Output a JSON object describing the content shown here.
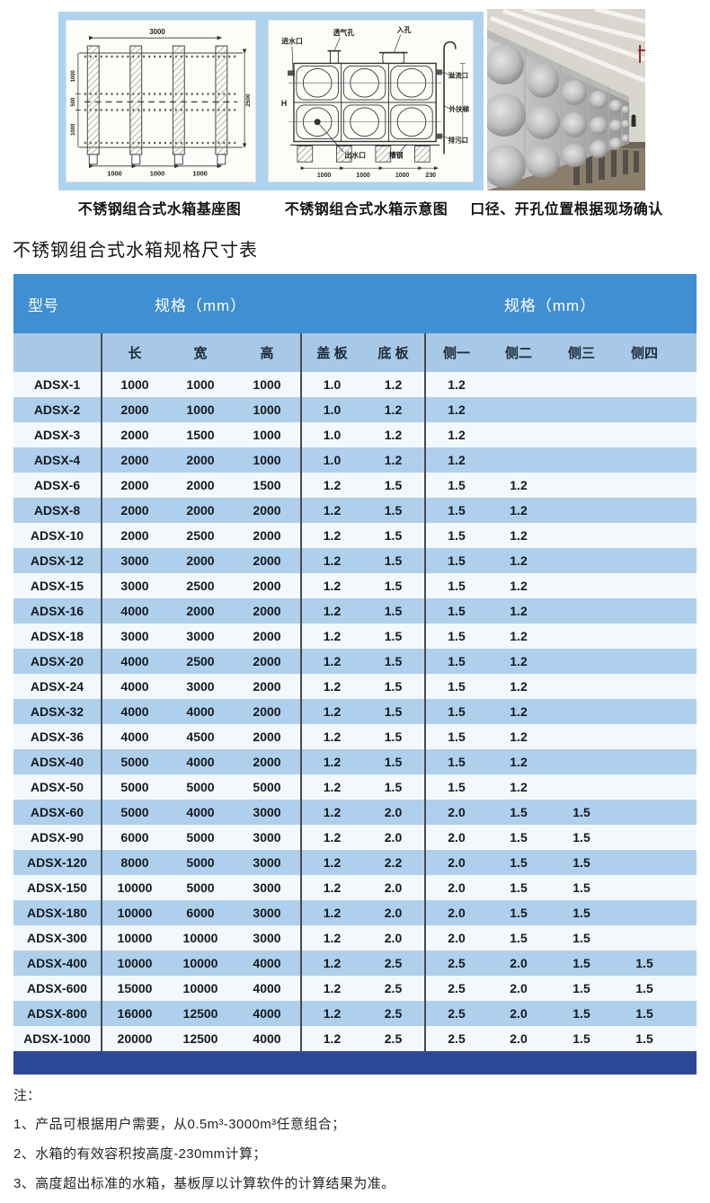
{
  "figures": {
    "captions": [
      "不锈钢组合式水箱基座图",
      "不锈钢组合式水箱示意图",
      "口径、开孔位置根据现场确认"
    ],
    "diagram1": {
      "dim_top": "3000",
      "dims_left": [
        "1000",
        "500",
        "1000"
      ],
      "dim_right": "2500",
      "dims_bottom": [
        "1000",
        "1000",
        "1000"
      ]
    },
    "diagram2": {
      "labels": {
        "inlet": "进水口",
        "vent": "透气孔",
        "manhole": "入孔",
        "overflow": "溢流口",
        "ladder": "外扶梯",
        "drain": "排污口",
        "outlet": "出水口",
        "channel": "槽钢",
        "height": "H"
      },
      "dims_bottom": [
        "1000",
        "1000",
        "1000",
        "230"
      ]
    }
  },
  "title": "不锈钢组合式水箱规格尺寸表",
  "table": {
    "group_headers": {
      "model": "型号",
      "spec_lwh": "规格（mm）",
      "spec_side": "规格（mm）"
    },
    "columns": [
      "长",
      "宽",
      "高",
      "盖 板",
      "底 板",
      "侧一",
      "侧二",
      "侧三",
      "侧四"
    ],
    "rows": [
      {
        "model": "ADSX-1",
        "values": [
          "1000",
          "1000",
          "1000",
          "1.0",
          "1.2",
          "1.2",
          "",
          "",
          ""
        ]
      },
      {
        "model": "ADSX-2",
        "values": [
          "2000",
          "1000",
          "1000",
          "1.0",
          "1.2",
          "1.2",
          "",
          "",
          ""
        ]
      },
      {
        "model": "ADSX-3",
        "values": [
          "2000",
          "1500",
          "1000",
          "1.0",
          "1.2",
          "1.2",
          "",
          "",
          ""
        ]
      },
      {
        "model": "ADSX-4",
        "values": [
          "2000",
          "2000",
          "1000",
          "1.0",
          "1.2",
          "1.2",
          "",
          "",
          ""
        ]
      },
      {
        "model": "ADSX-6",
        "values": [
          "2000",
          "2000",
          "1500",
          "1.2",
          "1.5",
          "1.5",
          "1.2",
          "",
          ""
        ]
      },
      {
        "model": "ADSX-8",
        "values": [
          "2000",
          "2000",
          "2000",
          "1.2",
          "1.5",
          "1.5",
          "1.2",
          "",
          ""
        ]
      },
      {
        "model": "ADSX-10",
        "values": [
          "2000",
          "2500",
          "2000",
          "1.2",
          "1.5",
          "1.5",
          "1.2",
          "",
          ""
        ]
      },
      {
        "model": "ADSX-12",
        "values": [
          "3000",
          "2000",
          "2000",
          "1.2",
          "1.5",
          "1.5",
          "1.2",
          "",
          ""
        ]
      },
      {
        "model": "ADSX-15",
        "values": [
          "3000",
          "2500",
          "2000",
          "1.2",
          "1.5",
          "1.5",
          "1.2",
          "",
          ""
        ]
      },
      {
        "model": "ADSX-16",
        "values": [
          "4000",
          "2000",
          "2000",
          "1.2",
          "1.5",
          "1.5",
          "1.2",
          "",
          ""
        ]
      },
      {
        "model": "ADSX-18",
        "values": [
          "3000",
          "3000",
          "2000",
          "1.2",
          "1.5",
          "1.5",
          "1.2",
          "",
          ""
        ]
      },
      {
        "model": "ADSX-20",
        "values": [
          "4000",
          "2500",
          "2000",
          "1.2",
          "1.5",
          "1.5",
          "1.2",
          "",
          ""
        ]
      },
      {
        "model": "ADSX-24",
        "values": [
          "4000",
          "3000",
          "2000",
          "1.2",
          "1.5",
          "1.5",
          "1.2",
          "",
          ""
        ]
      },
      {
        "model": "ADSX-32",
        "values": [
          "4000",
          "4000",
          "2000",
          "1.2",
          "1.5",
          "1.5",
          "1.2",
          "",
          ""
        ]
      },
      {
        "model": "ADSX-36",
        "values": [
          "4000",
          "4500",
          "2000",
          "1.2",
          "1.5",
          "1.5",
          "1.2",
          "",
          ""
        ]
      },
      {
        "model": "ADSX-40",
        "values": [
          "5000",
          "4000",
          "2000",
          "1.2",
          "1.5",
          "1.5",
          "1.2",
          "",
          ""
        ]
      },
      {
        "model": "ADSX-50",
        "values": [
          "5000",
          "5000",
          "5000",
          "1.2",
          "1.5",
          "1.5",
          "1.2",
          "",
          ""
        ]
      },
      {
        "model": "ADSX-60",
        "values": [
          "5000",
          "4000",
          "3000",
          "1.2",
          "2.0",
          "2.0",
          "1.5",
          "1.5",
          ""
        ]
      },
      {
        "model": "ADSX-90",
        "values": [
          "6000",
          "5000",
          "3000",
          "1.2",
          "2.0",
          "2.0",
          "1.5",
          "1.5",
          ""
        ]
      },
      {
        "model": "ADSX-120",
        "values": [
          "8000",
          "5000",
          "3000",
          "1.2",
          "2.2",
          "2.0",
          "1.5",
          "1.5",
          ""
        ]
      },
      {
        "model": "ADSX-150",
        "values": [
          "10000",
          "5000",
          "3000",
          "1.2",
          "2.0",
          "2.0",
          "1.5",
          "1.5",
          ""
        ]
      },
      {
        "model": "ADSX-180",
        "values": [
          "10000",
          "6000",
          "3000",
          "1.2",
          "2.0",
          "2.0",
          "1.5",
          "1.5",
          ""
        ]
      },
      {
        "model": "ADSX-300",
        "values": [
          "10000",
          "10000",
          "3000",
          "1.2",
          "2.0",
          "2.0",
          "1.5",
          "1.5",
          ""
        ]
      },
      {
        "model": "ADSX-400",
        "values": [
          "10000",
          "10000",
          "4000",
          "1.2",
          "2.5",
          "2.5",
          "2.0",
          "1.5",
          "1.5"
        ]
      },
      {
        "model": "ADSX-600",
        "values": [
          "15000",
          "10000",
          "4000",
          "1.2",
          "2.5",
          "2.5",
          "2.0",
          "1.5",
          "1.5"
        ]
      },
      {
        "model": "ADSX-800",
        "values": [
          "16000",
          "12500",
          "4000",
          "1.2",
          "2.5",
          "2.5",
          "2.0",
          "1.5",
          "1.5"
        ]
      },
      {
        "model": "ADSX-1000",
        "values": [
          "20000",
          "12500",
          "4000",
          "1.2",
          "2.5",
          "2.5",
          "2.0",
          "1.5",
          "1.5"
        ]
      }
    ]
  },
  "notes": {
    "heading": "注：",
    "items": [
      "1、产品可根据用户需要，从0.5m³-3000m³任意组合；",
      "2、水箱的有效容积按高度-230mm计算；",
      "3、高度超出标准的水箱，基板厚以计算软件的计算结果为准。"
    ]
  },
  "colors": {
    "header_blue": "#3f8fd2",
    "subheader_blue": "#a7c9e7",
    "row_even_blue": "#aed0ed",
    "row_odd_light": "#f3f8fd",
    "footer_navy": "#2d4899",
    "figure_panel_blue": "#aed3ef"
  }
}
